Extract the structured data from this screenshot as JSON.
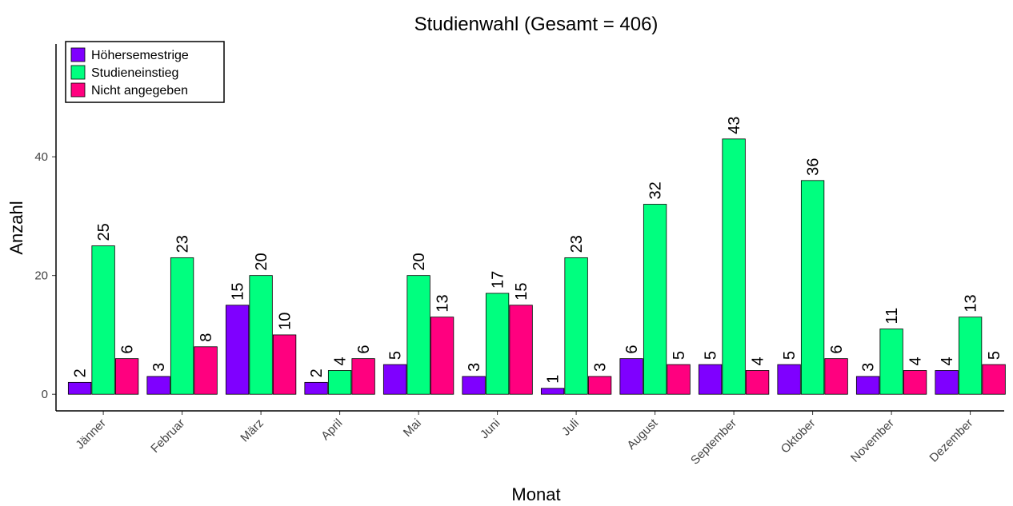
{
  "chart_data": {
    "type": "bar",
    "title": "Studienwahl (Gesamt = 406)",
    "x_label": "Monat",
    "y_label": "Anzahl",
    "categories": [
      "Jänner",
      "Februar",
      "März",
      "April",
      "Mai",
      "Juni",
      "Juli",
      "August",
      "September",
      "Oktober",
      "November",
      "Dezember"
    ],
    "series": [
      {
        "name": "Höhersemestrige",
        "color": "#7f00ff",
        "values": [
          2,
          3,
          15,
          2,
          5,
          3,
          1,
          6,
          5,
          5,
          3,
          4
        ]
      },
      {
        "name": "Studieneinstieg",
        "color": "#00ff7f",
        "values": [
          25,
          23,
          20,
          4,
          20,
          17,
          23,
          32,
          43,
          36,
          11,
          13
        ]
      },
      {
        "name": "Nicht angegeben",
        "color": "#ff007f",
        "values": [
          6,
          8,
          10,
          6,
          13,
          15,
          3,
          5,
          4,
          6,
          4,
          5
        ]
      }
    ],
    "ylim": [
      -2.8,
      59
    ],
    "yticks": [
      0,
      20,
      40
    ],
    "legend": "top-left"
  }
}
